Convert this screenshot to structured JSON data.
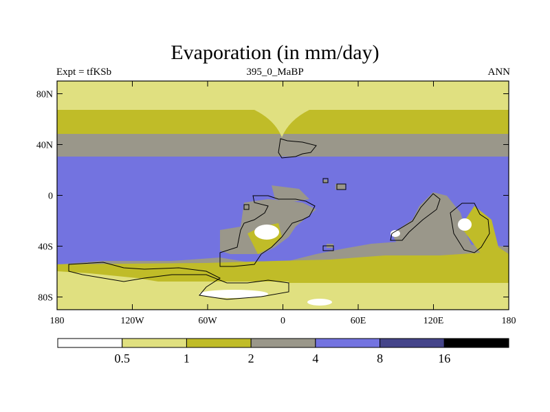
{
  "title": "Evaporation (in mm/day)",
  "subtitle_left": "Expt = tfKSb",
  "subtitle_center": "395_0_MaBP",
  "subtitle_right": "ANN",
  "map": {
    "x_ticks": [
      {
        "lon": -180,
        "label": "180"
      },
      {
        "lon": -120,
        "label": "120W"
      },
      {
        "lon": -60,
        "label": "60W"
      },
      {
        "lon": 0,
        "label": "0"
      },
      {
        "lon": 60,
        "label": "60E"
      },
      {
        "lon": 120,
        "label": "120E"
      },
      {
        "lon": 180,
        "label": "180"
      }
    ],
    "y_ticks": [
      {
        "lat": 80,
        "label": "80N"
      },
      {
        "lat": 40,
        "label": "40N"
      },
      {
        "lat": 0,
        "label": "0"
      },
      {
        "lat": -40,
        "label": "40S"
      },
      {
        "lat": -80,
        "label": "80S"
      }
    ]
  },
  "colorbar": {
    "levels": [
      "0.5",
      "1",
      "2",
      "4",
      "8",
      "16"
    ],
    "colors": [
      "#ffffff",
      "#e0e080",
      "#c0bc28",
      "#9a978a",
      "#7373e0",
      "#44448a",
      "#000000"
    ]
  }
}
